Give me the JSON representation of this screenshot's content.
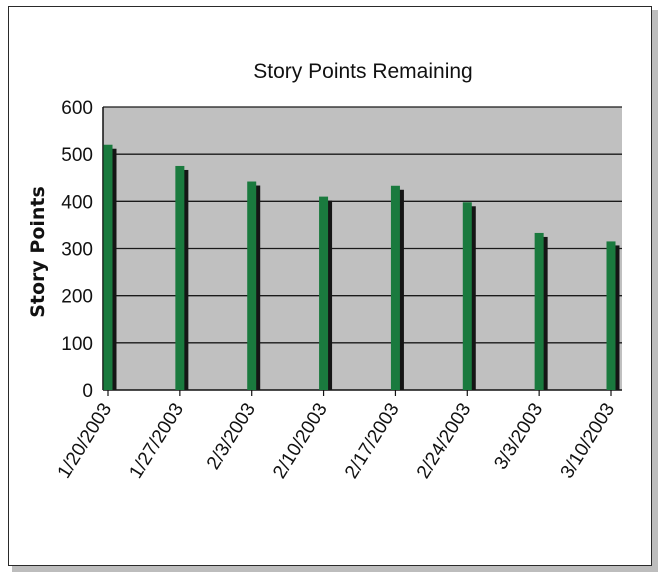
{
  "chart_data": {
    "type": "bar",
    "title": "Story Points Remaining",
    "ylabel": "Story Points",
    "xlabel": "",
    "categories": [
      "1/20/2003",
      "1/27/2003",
      "2/3/2003",
      "2/10/2003",
      "2/17/2003",
      "2/24/2003",
      "3/3/2003",
      "3/10/2003"
    ],
    "values": [
      520,
      475,
      442,
      410,
      433,
      398,
      333,
      315
    ],
    "ylim": [
      0,
      600
    ],
    "yticks": [
      "0",
      "100",
      "200",
      "300",
      "400",
      "500",
      "600"
    ],
    "grid": true,
    "legend": "none",
    "colors": {
      "plot_background": "#c0c0c0",
      "bar": "#1a7a3e",
      "bar_shadow": "#151515",
      "gridline": "#1a1a1a"
    }
  }
}
